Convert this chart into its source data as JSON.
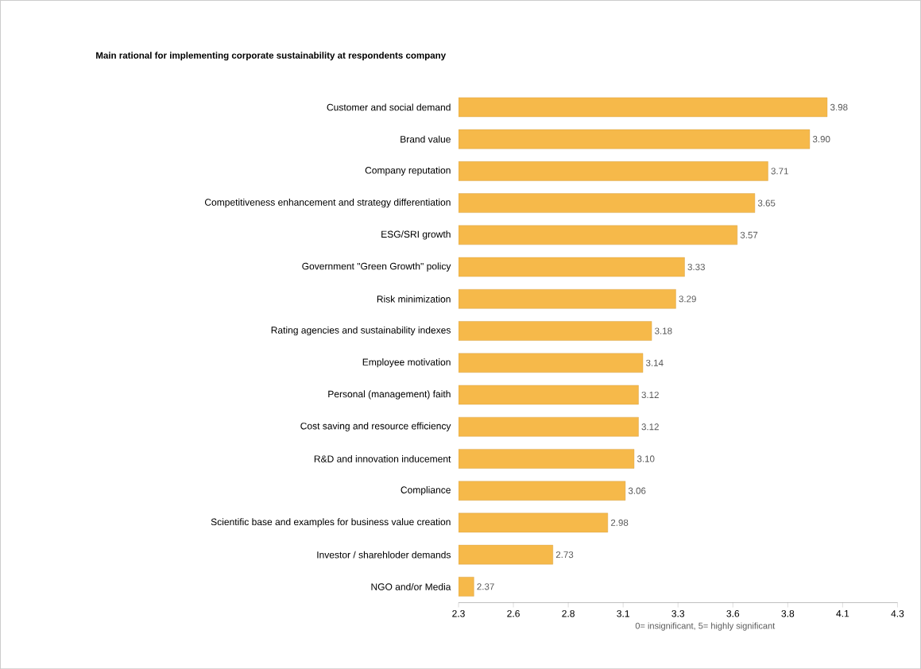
{
  "chart_data": {
    "type": "bar",
    "orientation": "horizontal",
    "title": "Main rational for implementing corporate sustainability at respondents company",
    "xlabel": "0= insignificant, 5= highly significant",
    "categories": [
      "Customer and social demand",
      "Brand value",
      "Company reputation",
      "Competitiveness enhancement and strategy differentiation",
      "ESG/SRI growth",
      "Government \"Green Growth\" policy",
      "Risk minimization",
      "Rating agencies and sustainability indexes",
      "Employee motivation",
      "Personal (management) faith",
      "Cost saving and resource efficiency",
      "R&D and innovation inducement",
      "Compliance",
      "Scientific base and examples for business value creation",
      "Investor / sharehloder demands",
      "NGO and/or Media"
    ],
    "values": [
      3.98,
      3.9,
      3.71,
      3.65,
      3.57,
      3.33,
      3.29,
      3.18,
      3.14,
      3.12,
      3.12,
      3.1,
      3.06,
      2.98,
      2.73,
      2.37
    ],
    "value_labels": [
      "3.98",
      "3.90",
      "3.71",
      "3.65",
      "3.57",
      "3.33",
      "3.29",
      "3.18",
      "3.14",
      "3.12",
      "3.12",
      "3.10",
      "3.06",
      "2.98",
      "2.73",
      "2.37"
    ],
    "color": "#f6b94a",
    "xlim": [
      2.3,
      4.3
    ],
    "xticks": [
      2.3,
      {
        "value": 2.55,
        "label": "2.6"
      },
      2.8,
      {
        "value": 3.05,
        "label": "3.1"
      },
      3.3,
      {
        "value": 3.55,
        "label": "3.6"
      },
      3.8,
      {
        "value": 4.05,
        "label": "4.1"
      },
      4.3
    ],
    "grid": false
  }
}
